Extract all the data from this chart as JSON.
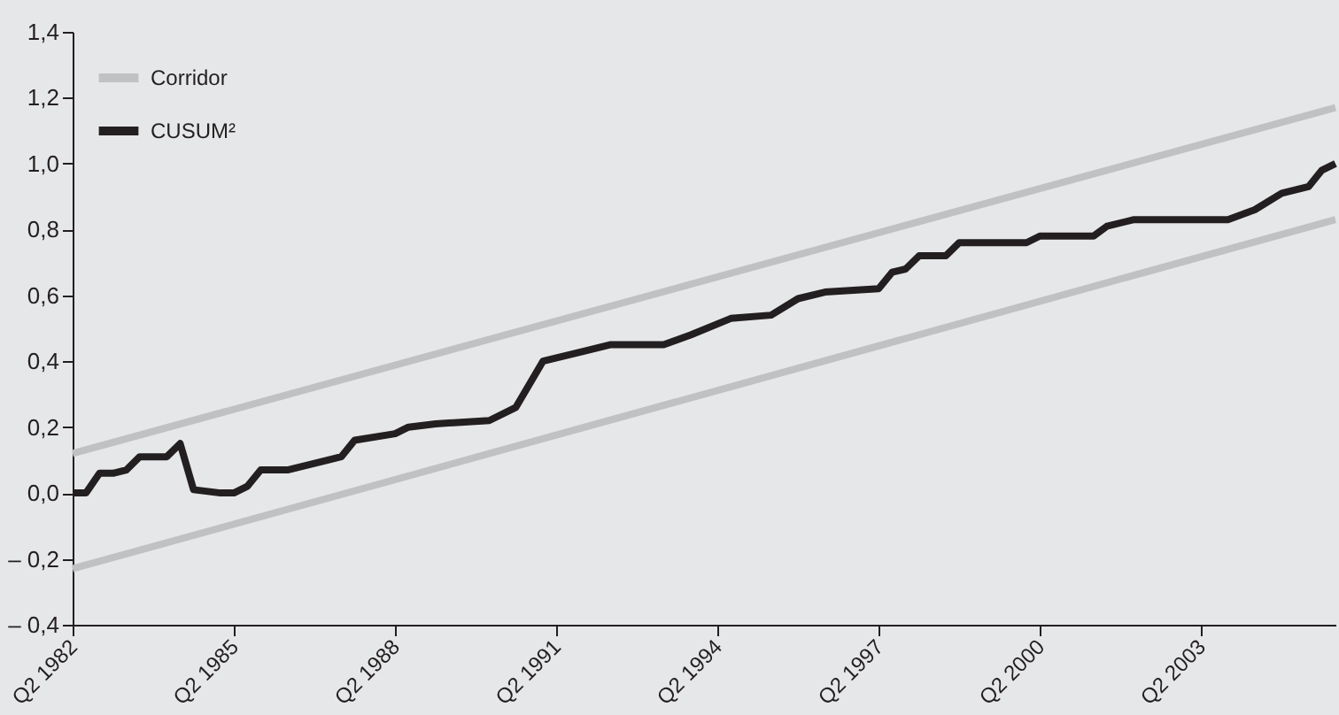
{
  "chart_data": {
    "type": "line",
    "xlim": [
      "1982-04",
      "2005-10"
    ],
    "ylim": [
      -0.4,
      1.4
    ],
    "yticks": [
      {
        "value": -0.4,
        "label": "– 0,4"
      },
      {
        "value": -0.2,
        "label": "– 0,2"
      },
      {
        "value": 0,
        "label": "0,0"
      },
      {
        "value": 0.2,
        "label": "0,2"
      },
      {
        "value": 0.4,
        "label": "0,4"
      },
      {
        "value": 0.6,
        "label": "0,6"
      },
      {
        "value": 0.8,
        "label": "0,8"
      },
      {
        "value": 1.0,
        "label": "1,0"
      },
      {
        "value": 1.2,
        "label": "1,2"
      },
      {
        "value": 1.4,
        "label": "1,4"
      }
    ],
    "xticks": [
      {
        "value": "1982-04",
        "label": "Q2 1982"
      },
      {
        "value": "1985-04",
        "label": "Q2 1985"
      },
      {
        "value": "1988-04",
        "label": "Q2 1988"
      },
      {
        "value": "1991-04",
        "label": "Q2 1991"
      },
      {
        "value": "1994-04",
        "label": "Q2 1994"
      },
      {
        "value": "1997-04",
        "label": "Q2 1997"
      },
      {
        "value": "2000-04",
        "label": "Q2 2000"
      },
      {
        "value": "2003-04",
        "label": "Q2 2003"
      }
    ],
    "grid": false,
    "legend": "top left",
    "series": [
      {
        "name": "Corridor",
        "color": "#c0c1c3",
        "x": [
          "1982-04",
          "2005-10"
        ],
        "values": [
          0.12,
          1.17
        ]
      },
      {
        "color": "#c0c1c3",
        "x": [
          "1982-04",
          "2005-10"
        ],
        "values": [
          -0.23,
          0.83
        ]
      },
      {
        "name": "CUSUM²",
        "color": "#231f20",
        "x": [
          "1982-04",
          "1982-07",
          "1982-10",
          "1983-01",
          "1983-04",
          "1983-07",
          "1984-01",
          "1984-04",
          "1984-07",
          "1985-01",
          "1985-04",
          "1985-07",
          "1985-10",
          "1986-04",
          "1987-01",
          "1987-04",
          "1987-07",
          "1988-04",
          "1988-07",
          "1989-01",
          "1990-01",
          "1990-07",
          "1991-01",
          "1991-10",
          "1992-04",
          "1993-04",
          "1993-10",
          "1994-07",
          "1995-04",
          "1995-10",
          "1996-04",
          "1997-04",
          "1997-07",
          "1997-10",
          "1998-01",
          "1998-07",
          "1998-10",
          "2000-01",
          "2000-04",
          "2001-04",
          "2001-07",
          "2002-01",
          "2003-10",
          "2004-04",
          "2004-10",
          "2005-04",
          "2005-07",
          "2005-10"
        ],
        "values": [
          0.0,
          0.0,
          0.06,
          0.06,
          0.07,
          0.11,
          0.11,
          0.15,
          0.01,
          0.0,
          0.0,
          0.02,
          0.07,
          0.07,
          0.1,
          0.11,
          0.16,
          0.18,
          0.2,
          0.21,
          0.22,
          0.26,
          0.4,
          0.43,
          0.45,
          0.45,
          0.48,
          0.53,
          0.54,
          0.59,
          0.61,
          0.62,
          0.67,
          0.68,
          0.72,
          0.72,
          0.76,
          0.76,
          0.78,
          0.78,
          0.81,
          0.83,
          0.83,
          0.86,
          0.91,
          0.93,
          0.98,
          1.0
        ]
      }
    ]
  }
}
